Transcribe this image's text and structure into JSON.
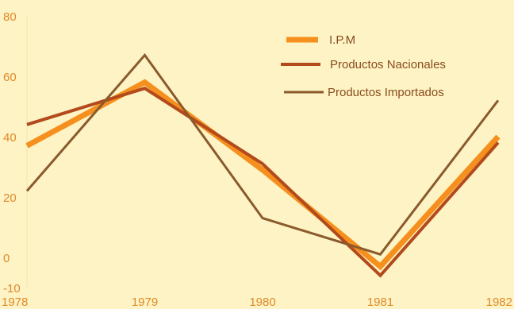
{
  "chart_data": {
    "type": "line",
    "x": [
      "1978",
      "1979",
      "1980",
      "1981",
      "1982"
    ],
    "ylim": [
      -10,
      80
    ],
    "yticks": [
      -10,
      0,
      20,
      40,
      60,
      80
    ],
    "grid": false,
    "legend_position": "top-right",
    "series": [
      {
        "name": "I.P.M",
        "color": "#f5901e",
        "values": [
          37,
          58,
          29,
          -3,
          40
        ]
      },
      {
        "name": "Productos Nacionales",
        "color": "#b24a1c",
        "values": [
          44,
          56,
          31,
          -6,
          38
        ]
      },
      {
        "name": "Productos Importados",
        "color": "#8a5a2c",
        "values": [
          22,
          67,
          13,
          1,
          52
        ]
      }
    ]
  }
}
